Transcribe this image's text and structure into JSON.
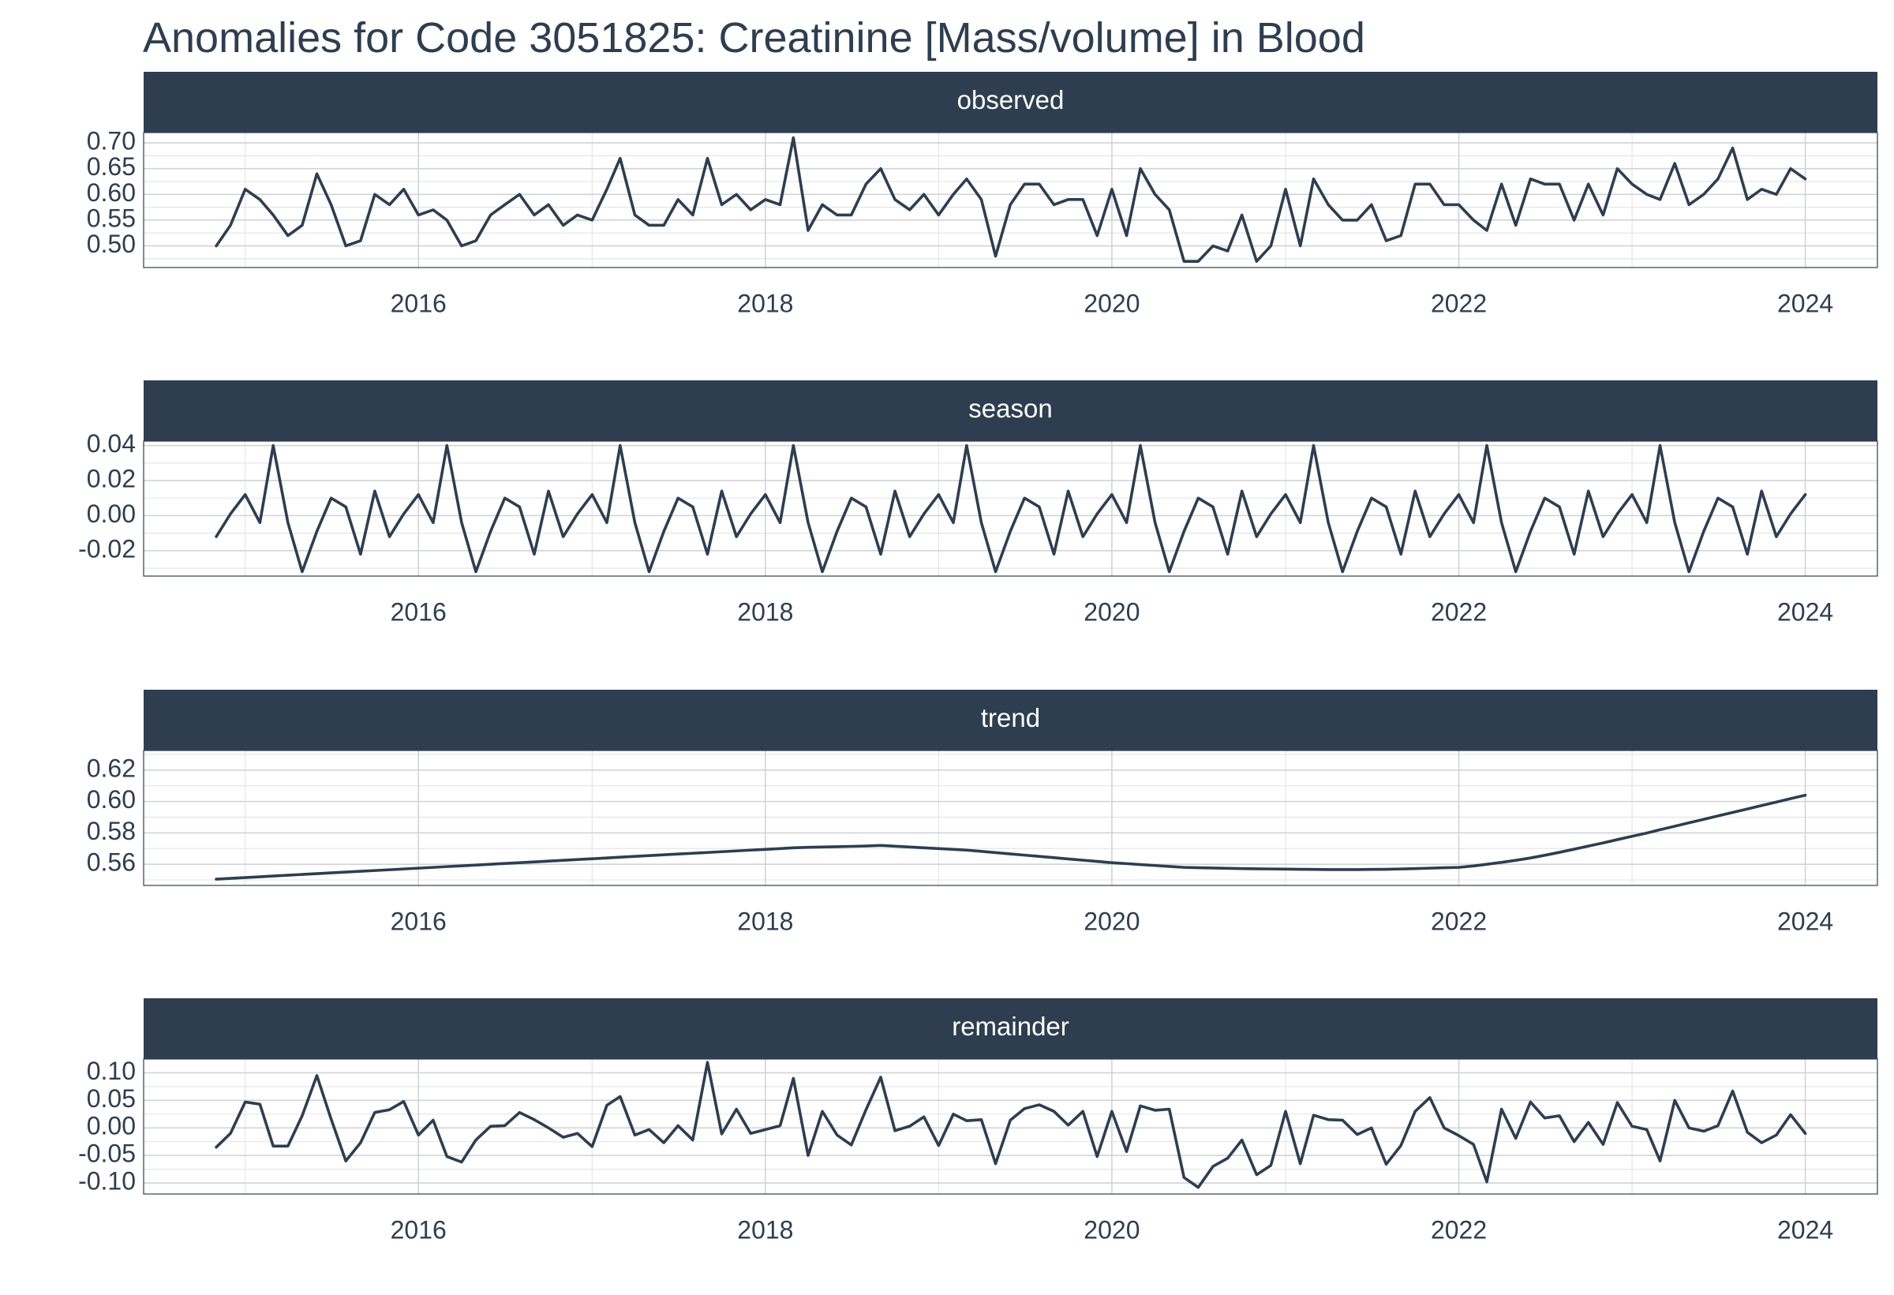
{
  "chart_data": {
    "type": "line",
    "title": "Anomalies for Code 3051825: Creatinine [Mass/volume] in Blood",
    "x_axis": {
      "type": "date",
      "range": [
        "2014-06-01",
        "2024-06-01"
      ],
      "ticks": [
        {
          "value": "2016-01-01",
          "label": "2016"
        },
        {
          "value": "2018-01-01",
          "label": "2018"
        },
        {
          "value": "2020-01-01",
          "label": "2020"
        },
        {
          "value": "2022-01-01",
          "label": "2022"
        },
        {
          "value": "2024-01-01",
          "label": "2024"
        }
      ]
    },
    "x": [
      "2014-11-01",
      "2014-12-01",
      "2015-01-01",
      "2015-02-01",
      "2015-03-01",
      "2015-04-01",
      "2015-05-01",
      "2015-06-01",
      "2015-07-01",
      "2015-08-01",
      "2015-09-01",
      "2015-10-01",
      "2015-11-01",
      "2015-12-01",
      "2016-01-01",
      "2016-02-01",
      "2016-03-01",
      "2016-04-01",
      "2016-05-01",
      "2016-06-01",
      "2016-07-01",
      "2016-08-01",
      "2016-09-01",
      "2016-10-01",
      "2016-11-01",
      "2016-12-01",
      "2017-01-01",
      "2017-02-01",
      "2017-03-01",
      "2017-04-01",
      "2017-05-01",
      "2017-06-01",
      "2017-07-01",
      "2017-08-01",
      "2017-09-01",
      "2017-10-01",
      "2017-11-01",
      "2017-12-01",
      "2018-01-01",
      "2018-02-01",
      "2018-03-01",
      "2018-04-01",
      "2018-05-01",
      "2018-06-01",
      "2018-07-01",
      "2018-08-01",
      "2018-09-01",
      "2018-10-01",
      "2018-11-01",
      "2018-12-01",
      "2019-01-01",
      "2019-02-01",
      "2019-03-01",
      "2019-04-01",
      "2019-05-01",
      "2019-06-01",
      "2019-07-01",
      "2019-08-01",
      "2019-09-01",
      "2019-10-01",
      "2019-11-01",
      "2019-12-01",
      "2020-01-01",
      "2020-02-01",
      "2020-03-01",
      "2020-04-01",
      "2020-05-01",
      "2020-06-01",
      "2020-07-01",
      "2020-08-01",
      "2020-09-01",
      "2020-10-01",
      "2020-11-01",
      "2020-12-01",
      "2021-01-01",
      "2021-02-01",
      "2021-03-01",
      "2021-04-01",
      "2021-05-01",
      "2021-06-01",
      "2021-07-01",
      "2021-08-01",
      "2021-09-01",
      "2021-10-01",
      "2021-11-01",
      "2021-12-01",
      "2022-01-01",
      "2022-02-01",
      "2022-03-01",
      "2022-04-01",
      "2022-05-01",
      "2022-06-01",
      "2022-07-01",
      "2022-08-01",
      "2022-09-01",
      "2022-10-01",
      "2022-11-01",
      "2022-12-01",
      "2023-01-01",
      "2023-02-01",
      "2023-03-01",
      "2023-04-01",
      "2023-05-01",
      "2023-06-01",
      "2023-07-01",
      "2023-08-01",
      "2023-09-01",
      "2023-10-01",
      "2023-11-01",
      "2023-12-01",
      "2024-01-01"
    ],
    "panels": [
      {
        "name": "observed",
        "ylim": [
          0.458,
          0.72
        ],
        "yticks": [
          {
            "value": 0.5,
            "label": "0.50"
          },
          {
            "value": 0.55,
            "label": "0.55"
          },
          {
            "value": 0.6,
            "label": "0.60"
          },
          {
            "value": 0.65,
            "label": "0.65"
          },
          {
            "value": 0.7,
            "label": "0.70"
          }
        ],
        "values": [
          0.5,
          0.54,
          0.61,
          0.59,
          0.56,
          0.52,
          0.54,
          0.64,
          0.58,
          0.5,
          0.51,
          0.6,
          0.58,
          0.61,
          0.56,
          0.57,
          0.55,
          0.5,
          0.51,
          0.56,
          0.58,
          0.6,
          0.56,
          0.58,
          0.54,
          0.56,
          0.55,
          0.61,
          0.67,
          0.56,
          0.54,
          0.54,
          0.59,
          0.56,
          0.67,
          0.58,
          0.6,
          0.57,
          0.59,
          0.58,
          0.71,
          0.53,
          0.58,
          0.56,
          0.56,
          0.62,
          0.65,
          0.59,
          0.57,
          0.6,
          0.56,
          0.6,
          0.63,
          0.59,
          0.48,
          0.58,
          0.62,
          0.62,
          0.58,
          0.59,
          0.59,
          0.52,
          0.61,
          0.52,
          0.65,
          0.6,
          0.57,
          0.47,
          0.47,
          0.5,
          0.49,
          0.56,
          0.47,
          0.5,
          0.61,
          0.5,
          0.63,
          0.58,
          0.55,
          0.55,
          0.58,
          0.51,
          0.52,
          0.62,
          0.62,
          0.58,
          0.58,
          0.55,
          0.53,
          0.62,
          0.54,
          0.63,
          0.62,
          0.62,
          0.55,
          0.62,
          0.56,
          0.65,
          0.62,
          0.6,
          0.59,
          0.66,
          0.58,
          0.6,
          0.63,
          0.69,
          0.59,
          0.61,
          0.6,
          0.65,
          0.63
        ]
      },
      {
        "name": "season",
        "ylim": [
          -0.0345,
          0.0425
        ],
        "yticks": [
          {
            "value": -0.02,
            "label": "-0.02"
          },
          {
            "value": 0.0,
            "label": "0.00"
          },
          {
            "value": 0.02,
            "label": "0.02"
          },
          {
            "value": 0.04,
            "label": "0.04"
          }
        ],
        "values": [
          -0.012,
          0.001,
          0.012,
          -0.004,
          0.04,
          -0.004,
          -0.032,
          -0.009,
          0.01,
          0.005,
          -0.022,
          0.014,
          -0.012,
          0.001,
          0.012,
          -0.004,
          0.04,
          -0.004,
          -0.032,
          -0.009,
          0.01,
          0.005,
          -0.022,
          0.014,
          -0.012,
          0.001,
          0.012,
          -0.004,
          0.04,
          -0.004,
          -0.032,
          -0.009,
          0.01,
          0.005,
          -0.022,
          0.014,
          -0.012,
          0.001,
          0.012,
          -0.004,
          0.04,
          -0.004,
          -0.032,
          -0.009,
          0.01,
          0.005,
          -0.022,
          0.014,
          -0.012,
          0.001,
          0.012,
          -0.004,
          0.04,
          -0.004,
          -0.032,
          -0.009,
          0.01,
          0.005,
          -0.022,
          0.014,
          -0.012,
          0.001,
          0.012,
          -0.004,
          0.04,
          -0.004,
          -0.032,
          -0.009,
          0.01,
          0.005,
          -0.022,
          0.014,
          -0.012,
          0.001,
          0.012,
          -0.004,
          0.04,
          -0.004,
          -0.032,
          -0.009,
          0.01,
          0.005,
          -0.022,
          0.014,
          -0.012,
          0.001,
          0.012,
          -0.004,
          0.04,
          -0.004,
          -0.032,
          -0.009,
          0.01,
          0.005,
          -0.022,
          0.014,
          -0.012,
          0.001,
          0.012,
          -0.004,
          0.04,
          -0.004,
          -0.032,
          -0.009,
          0.01,
          0.005,
          -0.022,
          0.014,
          -0.012,
          0.001,
          0.012
        ]
      },
      {
        "name": "trend",
        "ylim": [
          0.5465,
          0.6325
        ],
        "yticks": [
          {
            "value": 0.56,
            "label": "0.56"
          },
          {
            "value": 0.58,
            "label": "0.58"
          },
          {
            "value": 0.6,
            "label": "0.60"
          },
          {
            "value": 0.62,
            "label": "0.62"
          }
        ],
        "values": [
          0.5505,
          0.551,
          0.5515,
          0.552,
          0.5525,
          0.553,
          0.5535,
          0.554,
          0.5545,
          0.555,
          0.5555,
          0.556,
          0.5565,
          0.557,
          0.5575,
          0.558,
          0.5585,
          0.559,
          0.5595,
          0.56,
          0.5605,
          0.561,
          0.5615,
          0.562,
          0.5625,
          0.563,
          0.5635,
          0.564,
          0.5645,
          0.565,
          0.5655,
          0.566,
          0.5665,
          0.567,
          0.5675,
          0.568,
          0.5685,
          0.569,
          0.5695,
          0.57,
          0.5705,
          0.5708,
          0.571,
          0.5712,
          0.5714,
          0.5716,
          0.572,
          0.5715,
          0.571,
          0.5705,
          0.57,
          0.5695,
          0.569,
          0.5682,
          0.5674,
          0.5666,
          0.5658,
          0.565,
          0.5642,
          0.5634,
          0.5626,
          0.5618,
          0.561,
          0.5604,
          0.5598,
          0.5592,
          0.5586,
          0.558,
          0.5578,
          0.5576,
          0.5574,
          0.5572,
          0.5571,
          0.557,
          0.5569,
          0.5568,
          0.5567,
          0.5566,
          0.5566,
          0.5566,
          0.5567,
          0.5568,
          0.557,
          0.5572,
          0.5575,
          0.5578,
          0.558,
          0.5589,
          0.56,
          0.5612,
          0.5625,
          0.564,
          0.5657,
          0.5676,
          0.5696,
          0.5716,
          0.5736,
          0.5757,
          0.5778,
          0.5799,
          0.582,
          0.5842,
          0.5864,
          0.5886,
          0.5908,
          0.593,
          0.5952,
          0.5974,
          0.5996,
          0.6018,
          0.604
        ]
      },
      {
        "name": "remainder",
        "ylim": [
          -0.12,
          0.125
        ],
        "yticks": [
          {
            "value": -0.1,
            "label": "-0.10"
          },
          {
            "value": -0.05,
            "label": "-0.05"
          },
          {
            "value": 0.0,
            "label": "0.00"
          },
          {
            "value": 0.05,
            "label": "0.05"
          },
          {
            "value": 0.1,
            "label": "0.10"
          }
        ],
        "values": [
          -0.035,
          -0.01,
          0.047,
          0.043,
          -0.033,
          -0.033,
          0.022,
          0.095,
          0.016,
          -0.06,
          -0.027,
          0.028,
          0.033,
          0.048,
          -0.013,
          0.014,
          -0.052,
          -0.062,
          -0.022,
          0.003,
          0.004,
          0.028,
          0.015,
          0.0,
          -0.017,
          -0.01,
          -0.034,
          0.041,
          0.057,
          -0.013,
          -0.003,
          -0.027,
          0.004,
          -0.022,
          0.119,
          -0.011,
          0.034,
          -0.01,
          -0.003,
          0.004,
          0.09,
          -0.05,
          0.03,
          -0.013,
          -0.031,
          0.033,
          0.092,
          -0.005,
          0.003,
          0.02,
          -0.032,
          0.025,
          0.013,
          0.015,
          -0.065,
          0.014,
          0.035,
          0.042,
          0.03,
          0.005,
          0.03,
          -0.052,
          0.03,
          -0.043,
          0.04,
          0.032,
          0.034,
          -0.09,
          -0.108,
          -0.07,
          -0.055,
          -0.022,
          -0.085,
          -0.068,
          0.03,
          -0.065,
          0.023,
          0.015,
          0.014,
          -0.012,
          0.0,
          -0.066,
          -0.032,
          0.03,
          0.055,
          0.0,
          -0.014,
          -0.03,
          -0.098,
          0.034,
          -0.019,
          0.047,
          0.018,
          0.022,
          -0.025,
          0.01,
          -0.03,
          0.046,
          0.003,
          -0.003,
          -0.06,
          0.05,
          0.0,
          -0.006,
          0.004,
          0.067,
          -0.008,
          -0.027,
          -0.013,
          0.024,
          -0.01
        ]
      }
    ]
  }
}
